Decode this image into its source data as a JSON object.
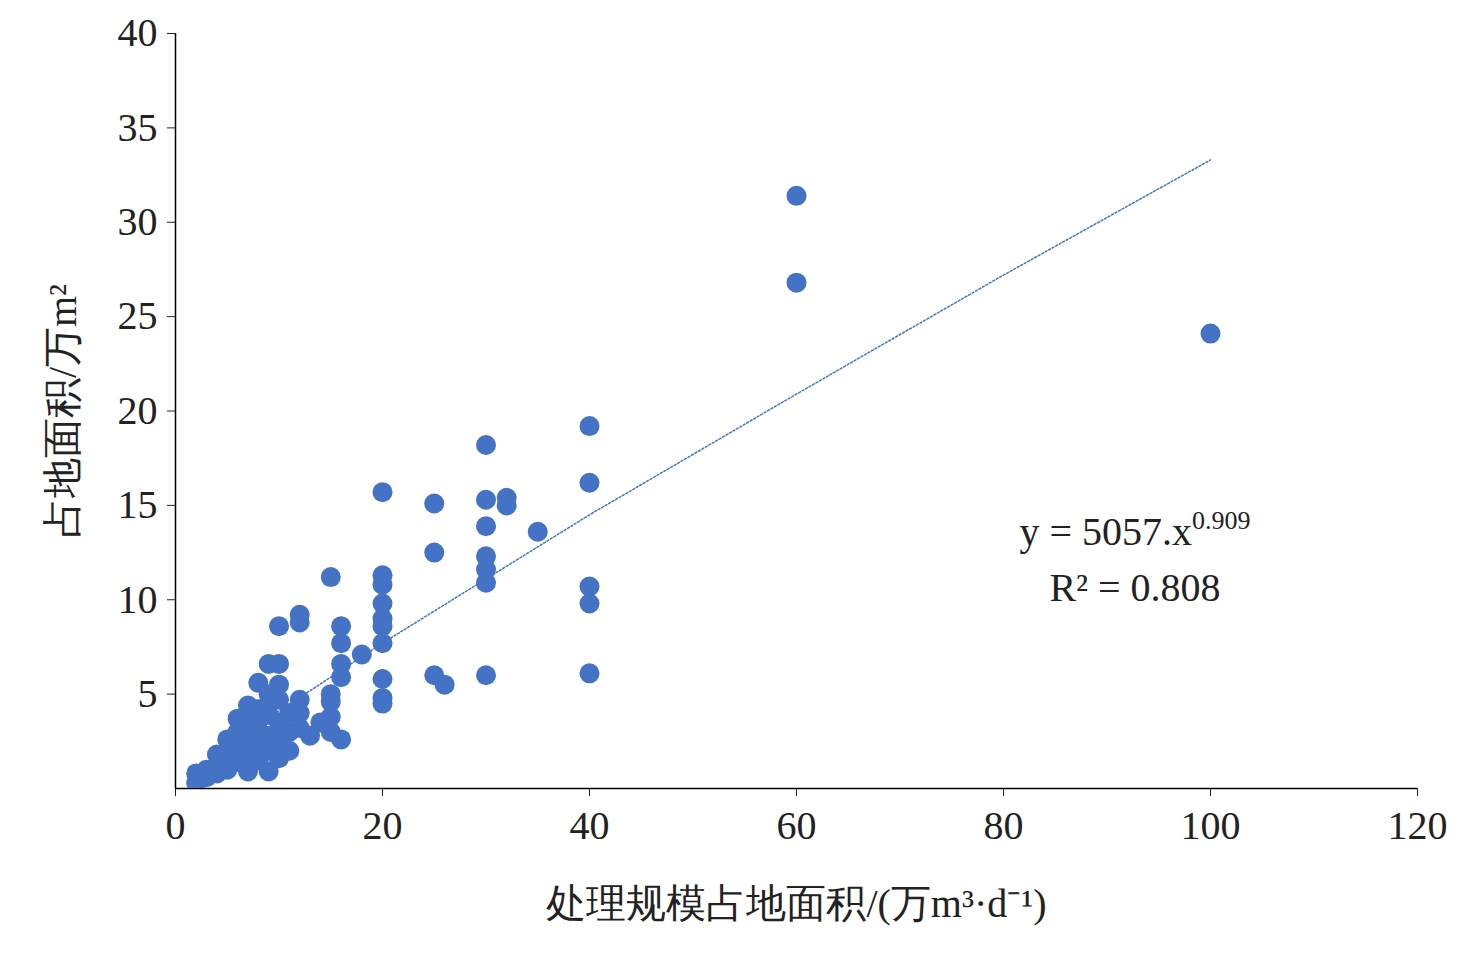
{
  "chart_data": {
    "type": "scatter",
    "x_label": "处理规模占地面积/(万m³·d⁻¹)",
    "y_label": "占地面积/万m²",
    "color": "#4472c4",
    "marker": "circle",
    "xlim": [
      0,
      120
    ],
    "xticks": [
      0,
      20,
      40,
      60,
      80,
      100,
      120
    ],
    "ylim": [
      0,
      40
    ],
    "yticks": [
      5,
      10,
      15,
      20,
      25,
      30,
      35,
      40
    ],
    "grid": false,
    "x": [
      60,
      60,
      100,
      40,
      40,
      40,
      40,
      40,
      35,
      32,
      32,
      30,
      30,
      30,
      30,
      30,
      30,
      30,
      25,
      25,
      25,
      26,
      20,
      20,
      20,
      20,
      20,
      20,
      20,
      20,
      20,
      20,
      15,
      16,
      16,
      16,
      16,
      16,
      18,
      15,
      15,
      15,
      15,
      13,
      12,
      12,
      12,
      12,
      10,
      10,
      10,
      10,
      10,
      10,
      10,
      9,
      9,
      9,
      9,
      9,
      9,
      8,
      8,
      8,
      8,
      8,
      7,
      7,
      7,
      7,
      7,
      6,
      6,
      6,
      6,
      5,
      5,
      5,
      5,
      4,
      4,
      4,
      3,
      3,
      2,
      2,
      11,
      11,
      11,
      14,
      12,
      8,
      9,
      10,
      7,
      6
    ],
    "values": [
      31.4,
      26.8,
      24.1,
      19.2,
      16.2,
      10.7,
      9.8,
      6.1,
      13.6,
      15.4,
      15.0,
      18.2,
      15.3,
      13.9,
      12.3,
      11.6,
      10.9,
      6.0,
      15.1,
      12.5,
      6.0,
      5.5,
      15.7,
      11.3,
      10.8,
      9.8,
      9.0,
      8.6,
      7.7,
      5.8,
      4.8,
      4.5,
      11.2,
      8.6,
      7.7,
      6.6,
      5.9,
      2.6,
      7.1,
      5.0,
      4.6,
      3.8,
      3.0,
      2.8,
      9.2,
      8.8,
      4.7,
      4.0,
      8.6,
      6.6,
      5.5,
      4.7,
      3.5,
      2.2,
      1.6,
      6.6,
      5.0,
      3.9,
      2.8,
      2.0,
      0.9,
      5.6,
      4.2,
      3.1,
      2.1,
      1.5,
      4.4,
      3.4,
      2.5,
      1.7,
      0.9,
      3.7,
      3.0,
      2.2,
      1.4,
      2.6,
      2.0,
      1.5,
      1.0,
      1.8,
      1.2,
      0.8,
      1.0,
      0.6,
      0.8,
      0.3,
      4.0,
      3.0,
      2.0,
      3.5,
      3.2,
      3.6,
      4.5,
      3.0,
      2.9,
      1.8
    ],
    "trendline": {
      "type": "line",
      "color": "#4472c4",
      "line_style": "dotted",
      "x": [
        2,
        10,
        20,
        40,
        60,
        80,
        100
      ],
      "values": [
        0.9,
        4.1,
        7.7,
        14.5,
        20.9,
        27.2,
        33.3
      ]
    },
    "annotations": [
      {
        "text": "y = 5057.x",
        "superscript": "0.909"
      },
      {
        "text": "R² = 0.808"
      }
    ]
  }
}
